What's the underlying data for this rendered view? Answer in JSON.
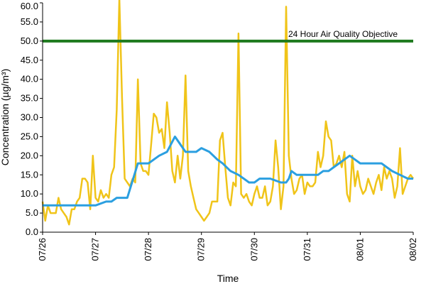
{
  "chart_data": {
    "type": "line",
    "title": "",
    "xlabel": "Time",
    "ylabel": "Concentration (µg/m³)",
    "ylim": [
      0,
      60
    ],
    "y_ticks": [
      "0.0",
      "5.0",
      "10.0",
      "15.0",
      "20.0",
      "25.0",
      "30.0",
      "35.0",
      "40.0",
      "45.0",
      "50.0",
      "55.0",
      "60.0"
    ],
    "x_ticks": [
      "07/26",
      "07/27",
      "07/28",
      "07/29",
      "07/30",
      "07/31",
      "08/01",
      "08/02"
    ],
    "grid": false,
    "annotation": "24 Hour Air Quality Objective",
    "objective_value": 50,
    "colors": {
      "hourly": "#F0C419",
      "rolling": "#2B9FE0",
      "objective": "#1E7A1E"
    },
    "series": [
      {
        "key": "hourly",
        "x": [
          0,
          0.05,
          0.1,
          0.15,
          0.2,
          0.25,
          0.3,
          0.35,
          0.4,
          0.45,
          0.5,
          0.55,
          0.6,
          0.65,
          0.7,
          0.75,
          0.8,
          0.85,
          0.9,
          0.95,
          1,
          1.05,
          1.1,
          1.15,
          1.2,
          1.25,
          1.3,
          1.35,
          1.4,
          1.45,
          1.5,
          1.55,
          1.6,
          1.65,
          1.7,
          1.75,
          1.8,
          1.85,
          1.9,
          1.95,
          2,
          2.05,
          2.1,
          2.15,
          2.2,
          2.25,
          2.3,
          2.35,
          2.4,
          2.45,
          2.5,
          2.55,
          2.6,
          2.65,
          2.7,
          2.75,
          2.8,
          2.85,
          2.9,
          2.95,
          3,
          3.05,
          3.1,
          3.15,
          3.2,
          3.25,
          3.3,
          3.35,
          3.4,
          3.45,
          3.5,
          3.55,
          3.6,
          3.65,
          3.7,
          3.75,
          3.8,
          3.85,
          3.9,
          3.95,
          4,
          4.05,
          4.1,
          4.15,
          4.2,
          4.25,
          4.3,
          4.35,
          4.4,
          4.45,
          4.5,
          4.55,
          4.6,
          4.65,
          4.7,
          4.75,
          4.8,
          4.85,
          4.9,
          4.95,
          5,
          5.05,
          5.1,
          5.15,
          5.2,
          5.25,
          5.3,
          5.35,
          5.4,
          5.45,
          5.5,
          5.55,
          5.6,
          5.65,
          5.7,
          5.75,
          5.8,
          5.85,
          5.9,
          5.95,
          6,
          6.05,
          6.1,
          6.15,
          6.2,
          6.25,
          6.3,
          6.35,
          6.4,
          6.45,
          6.5,
          6.55,
          6.6,
          6.65,
          6.7,
          6.75,
          6.8,
          6.85,
          6.9,
          6.95,
          7
        ],
        "values": [
          8,
          3,
          7,
          5,
          5,
          5,
          9,
          6,
          5,
          4,
          2,
          6,
          6,
          8,
          9,
          14,
          14,
          13,
          6,
          20,
          9,
          8,
          11,
          9,
          10,
          9,
          15,
          17,
          32,
          62,
          35,
          14,
          13,
          12,
          14,
          13,
          40,
          18,
          16,
          16,
          15,
          23,
          31,
          30,
          26,
          27,
          22,
          34,
          26,
          16,
          13,
          20,
          14,
          20,
          41,
          16,
          12,
          9,
          6,
          5,
          4,
          3,
          4,
          5,
          8,
          8,
          8,
          24,
          26,
          17,
          9,
          7,
          13,
          12,
          52,
          10,
          9,
          10,
          8,
          7,
          10,
          12,
          9,
          9,
          12,
          7,
          8,
          12,
          24,
          17,
          6,
          12,
          59,
          20,
          14,
          10,
          11,
          14,
          15,
          10,
          13,
          12,
          12,
          13,
          21,
          17,
          20,
          29,
          25,
          24,
          17,
          18,
          20,
          17,
          21,
          10,
          8,
          20,
          12,
          16,
          12,
          10,
          11,
          14,
          12,
          10,
          13,
          15,
          11,
          17,
          14,
          16,
          14,
          9,
          12,
          22,
          10,
          12,
          14,
          15,
          14
        ]
      },
      {
        "key": "rolling",
        "x": [
          0,
          1,
          1.2,
          1.3,
          1.4,
          1.6,
          1.8,
          2.0,
          2.2,
          2.35,
          2.5,
          2.7,
          2.9,
          3.0,
          3.15,
          3.3,
          3.4,
          3.55,
          3.7,
          3.8,
          3.9,
          4.0,
          4.1,
          4.3,
          4.5,
          4.6,
          4.65,
          4.7,
          4.8,
          5.0,
          5.2,
          5.3,
          5.4,
          5.5,
          5.6,
          5.7,
          5.8,
          6.0,
          6.2,
          6.4,
          6.5,
          6.6,
          6.75,
          6.9,
          7.0
        ],
        "values": [
          7,
          7,
          8,
          8,
          9,
          9,
          18,
          18,
          20,
          21,
          25,
          21,
          21,
          22,
          21,
          19,
          18,
          16,
          15,
          14,
          13,
          13,
          14,
          14,
          13,
          13,
          14,
          16,
          15,
          15,
          15,
          16,
          16,
          17,
          18,
          19,
          20,
          18,
          18,
          18,
          17,
          16,
          15,
          14,
          14
        ]
      }
    ]
  }
}
